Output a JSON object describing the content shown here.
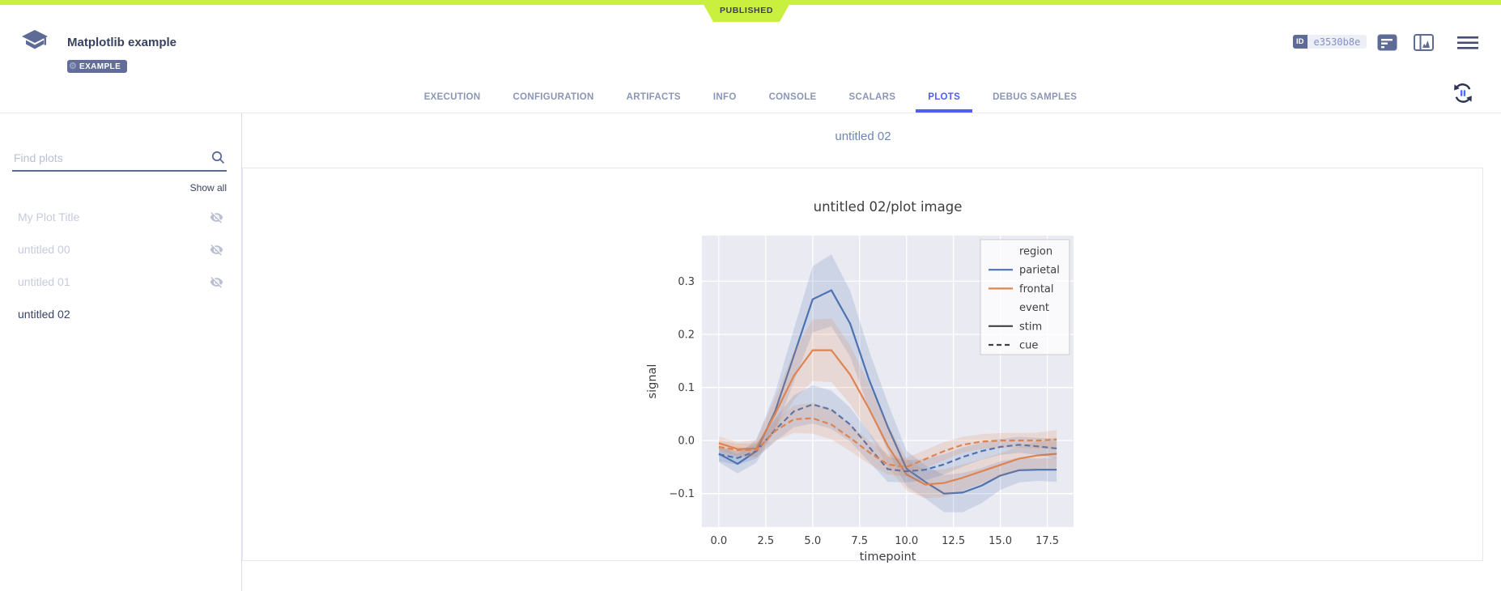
{
  "status": {
    "label": "PUBLISHED"
  },
  "colors": {
    "accent_lime": "#c9ef3f",
    "brand_slate": "#5e6b96",
    "active_tab_blue": "#4c5ff2",
    "seaborn_blue": "#4c72b0",
    "seaborn_orange": "#dd8452",
    "plot_background": "#eaeaf2"
  },
  "icons": {
    "task_type": "graduation-cap",
    "example_tag": "gear",
    "details": "list-lines",
    "viewer": "panel-with-chart",
    "menu": "hamburger",
    "search": "magnifier",
    "hidden_plot": "eye-off",
    "auto_refresh": "circular-arrows-pause"
  },
  "header": {
    "title": "Matplotlib example",
    "tag": "EXAMPLE",
    "id_label": "ID",
    "id_value": "e3530b8e"
  },
  "tabs": {
    "items": [
      "EXECUTION",
      "CONFIGURATION",
      "ARTIFACTS",
      "INFO",
      "CONSOLE",
      "SCALARS",
      "PLOTS",
      "DEBUG SAMPLES"
    ],
    "active": "PLOTS"
  },
  "sidebar": {
    "search_placeholder": "Find plots",
    "show_all": "Show all",
    "items": [
      {
        "label": "My Plot Title",
        "hidden": true,
        "selected": false
      },
      {
        "label": "untitled 00",
        "hidden": true,
        "selected": false
      },
      {
        "label": "untitled 01",
        "hidden": true,
        "selected": false
      },
      {
        "label": "untitled 02",
        "hidden": false,
        "selected": true
      }
    ]
  },
  "main": {
    "section_title": "untitled 02"
  },
  "chart_data": {
    "type": "line",
    "title": "untitled 02/plot image",
    "xlabel": "timepoint",
    "ylabel": "signal",
    "background": "#eaeaf2",
    "grid": true,
    "legend_position": "top-right",
    "x": [
      0,
      1,
      2,
      3,
      4,
      5,
      6,
      7,
      8,
      9,
      10,
      11,
      12,
      13,
      14,
      15,
      16,
      17,
      18
    ],
    "xlim": [
      -0.9,
      18.9
    ],
    "ylim": [
      -0.163,
      0.386
    ],
    "xticks": [
      0.0,
      2.5,
      5.0,
      7.5,
      10.0,
      12.5,
      15.0,
      17.5
    ],
    "yticks": [
      -0.1,
      0.0,
      0.1,
      0.2,
      0.3
    ],
    "legend": {
      "entries": [
        {
          "label": "region",
          "type": "header"
        },
        {
          "label": "parietal",
          "type": "line",
          "color": "#4c72b0",
          "dash": "solid"
        },
        {
          "label": "frontal",
          "type": "line",
          "color": "#dd8452",
          "dash": "solid"
        },
        {
          "label": "event",
          "type": "header"
        },
        {
          "label": "stim",
          "type": "line",
          "color": "#404040",
          "dash": "solid"
        },
        {
          "label": "cue",
          "type": "line",
          "color": "#404040",
          "dash": "dashed"
        }
      ]
    },
    "series": [
      {
        "name": "parietal-stim",
        "color": "#4c72b0",
        "dash": "solid",
        "values": [
          -0.025,
          -0.044,
          -0.02,
          0.055,
          0.16,
          0.266,
          0.283,
          0.22,
          0.115,
          0.026,
          -0.053,
          -0.078,
          -0.1,
          -0.098,
          -0.085,
          -0.066,
          -0.056,
          -0.055,
          -0.055
        ],
        "band": [
          0.016,
          0.018,
          0.022,
          0.035,
          0.05,
          0.062,
          0.068,
          0.062,
          0.055,
          0.045,
          0.034,
          0.031,
          0.035,
          0.037,
          0.033,
          0.027,
          0.023,
          0.021,
          0.023
        ]
      },
      {
        "name": "frontal-stim",
        "color": "#dd8452",
        "dash": "solid",
        "values": [
          -0.005,
          -0.016,
          -0.015,
          0.05,
          0.122,
          0.17,
          0.17,
          0.124,
          0.06,
          -0.01,
          -0.064,
          -0.083,
          -0.08,
          -0.07,
          -0.058,
          -0.046,
          -0.034,
          -0.028,
          -0.025
        ],
        "band": [
          0.013,
          0.013,
          0.016,
          0.03,
          0.046,
          0.058,
          0.06,
          0.055,
          0.046,
          0.04,
          0.03,
          0.026,
          0.026,
          0.025,
          0.023,
          0.022,
          0.023,
          0.026,
          0.028
        ]
      },
      {
        "name": "parietal-cue",
        "color": "#4c72b0",
        "dash": "dashed",
        "values": [
          -0.026,
          -0.033,
          -0.02,
          0.02,
          0.055,
          0.068,
          0.058,
          0.03,
          -0.012,
          -0.054,
          -0.058,
          -0.055,
          -0.045,
          -0.031,
          -0.02,
          -0.012,
          -0.008,
          -0.011,
          -0.015
        ],
        "band": [
          0.013,
          0.013,
          0.014,
          0.022,
          0.03,
          0.036,
          0.036,
          0.032,
          0.028,
          0.024,
          0.021,
          0.02,
          0.019,
          0.018,
          0.016,
          0.015,
          0.015,
          0.016,
          0.019
        ]
      },
      {
        "name": "frontal-cue",
        "color": "#dd8452",
        "dash": "dashed",
        "values": [
          -0.012,
          -0.018,
          -0.018,
          0.018,
          0.04,
          0.042,
          0.03,
          0.005,
          -0.022,
          -0.045,
          -0.05,
          -0.035,
          -0.02,
          -0.008,
          -0.002,
          0.0,
          0.0,
          0.0,
          0.002
        ],
        "band": [
          0.012,
          0.012,
          0.013,
          0.019,
          0.026,
          0.029,
          0.028,
          0.025,
          0.022,
          0.019,
          0.018,
          0.017,
          0.017,
          0.015,
          0.014,
          0.014,
          0.014,
          0.015,
          0.018
        ]
      }
    ]
  }
}
